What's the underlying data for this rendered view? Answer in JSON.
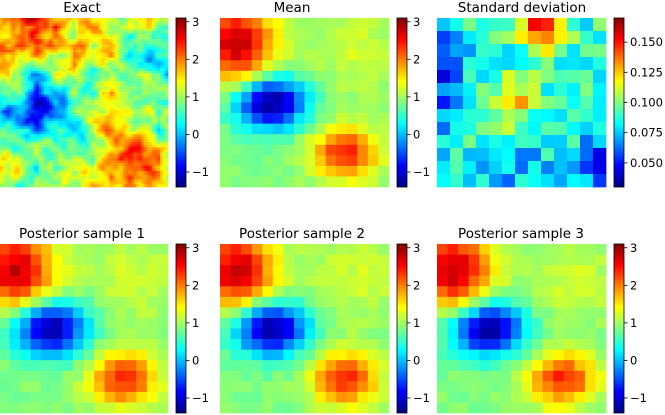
{
  "figure": {
    "colormap": "jet"
  },
  "chart_data": [
    {
      "type": "heatmap",
      "title": "Exact",
      "field": "fine-rough",
      "colorbar": {
        "range": [
          -1.4,
          3.1
        ],
        "ticks": [
          "3",
          "2",
          "1",
          "0",
          "−1"
        ],
        "tick_values": [
          3,
          2,
          1,
          0,
          -1
        ]
      }
    },
    {
      "type": "heatmap",
      "title": "Mean",
      "field": "smooth-mean",
      "grid": 16,
      "colorbar": {
        "range": [
          -1.4,
          3.1
        ],
        "ticks": [
          "3",
          "2",
          "1",
          "0",
          "−1"
        ],
        "tick_values": [
          3,
          2,
          1,
          0,
          -1
        ]
      }
    },
    {
      "type": "heatmap",
      "title": "Standard deviation",
      "field": "std",
      "grid": 13,
      "colorbar": {
        "range": [
          0.03,
          0.17
        ],
        "ticks": [
          "0.150",
          "0.125",
          "0.100",
          "0.075",
          "0.050"
        ],
        "tick_values": [
          0.15,
          0.125,
          0.1,
          0.075,
          0.05
        ]
      }
    },
    {
      "type": "heatmap",
      "title": "Posterior sample 1",
      "field": "smooth-sample",
      "grid": 16,
      "colorbar": {
        "range": [
          -1.4,
          3.1
        ],
        "ticks": [
          "3",
          "2",
          "1",
          "0",
          "−1"
        ],
        "tick_values": [
          3,
          2,
          1,
          0,
          -1
        ]
      }
    },
    {
      "type": "heatmap",
      "title": "Posterior sample 2",
      "field": "smooth-sample",
      "grid": 16,
      "colorbar": {
        "range": [
          -1.4,
          3.1
        ],
        "ticks": [
          "3",
          "2",
          "1",
          "0",
          "−1"
        ],
        "tick_values": [
          3,
          2,
          1,
          0,
          -1
        ]
      }
    },
    {
      "type": "heatmap",
      "title": "Posterior sample 3",
      "field": "smooth-sample",
      "grid": 16,
      "colorbar": {
        "range": [
          -1.4,
          3.1
        ],
        "ticks": [
          "3",
          "2",
          "1",
          "0",
          "−1"
        ],
        "tick_values": [
          3,
          2,
          1,
          0,
          -1
        ]
      }
    }
  ]
}
